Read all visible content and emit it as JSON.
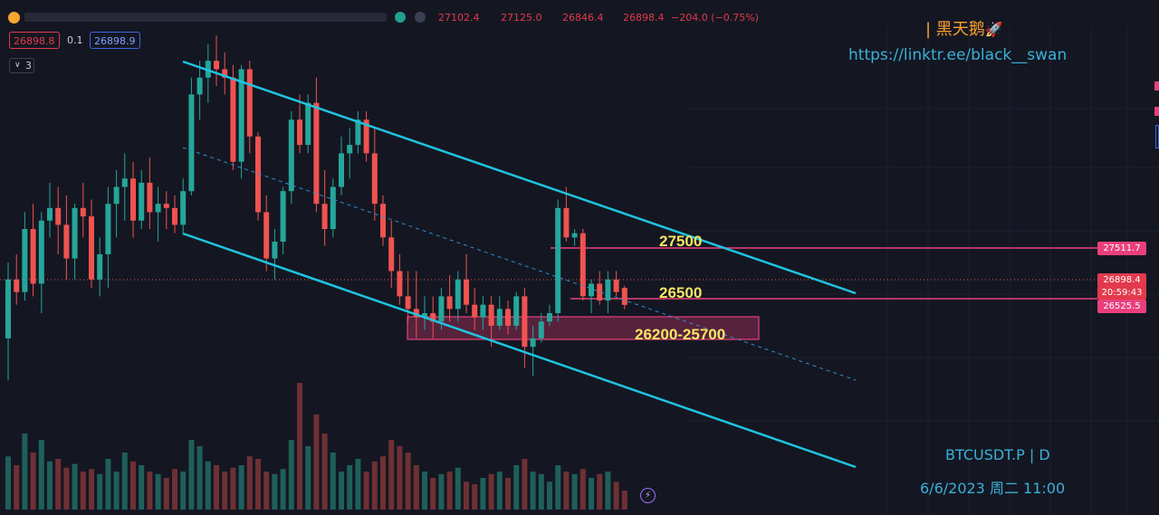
{
  "header": {
    "symbol_icon": "coin-icon",
    "ohlc": {
      "open": "27102.4",
      "high": "27125.0",
      "low": "26846.4",
      "close": "26898.4",
      "change": "−204.0 (−0.75%)"
    },
    "sell_price": "26898.8",
    "spread": "0.1",
    "buy_price": "26898.9",
    "indicator_count": "3"
  },
  "brand": {
    "name": "| 黑天鹅",
    "rocket": "🚀",
    "url": "https://linktr.ee/black__swan"
  },
  "footer": {
    "symbol": "BTCUSDT.P | D",
    "datetime": "6/6/2023 周二 11:00"
  },
  "right_axis": {
    "resistance": "27511.7",
    "last": "26898.4",
    "countdown": "20:59:43",
    "support": "26525.5"
  },
  "annotations": {
    "r": "27500",
    "s": "26500",
    "zone": "26200-25700"
  },
  "colors": {
    "up": "#26a69a",
    "down": "#ef5350",
    "channel": "#1ec5e0",
    "level": "#e9407c",
    "background": "#141722"
  },
  "chart_data": {
    "type": "candlestick",
    "symbol": "BTCUSDT.P",
    "interval": "D",
    "ylim": [
      25000,
      30000
    ],
    "candles": [
      [
        26500,
        27400,
        26000,
        27200
      ],
      [
        27200,
        27500,
        26900,
        27050
      ],
      [
        27050,
        28000,
        26950,
        27800
      ],
      [
        27800,
        28100,
        27000,
        27150
      ],
      [
        27150,
        28000,
        26800,
        27900
      ],
      [
        27900,
        28350,
        27700,
        28050
      ],
      [
        28050,
        28300,
        27500,
        27850
      ],
      [
        27850,
        28200,
        27200,
        27450
      ],
      [
        27450,
        28100,
        27200,
        28050
      ],
      [
        28050,
        28350,
        27700,
        27950
      ],
      [
        27950,
        28150,
        27100,
        27200
      ],
      [
        27200,
        27700,
        27000,
        27500
      ],
      [
        27500,
        28300,
        27100,
        28100
      ],
      [
        28100,
        28500,
        27700,
        28300
      ],
      [
        28300,
        28700,
        27900,
        28400
      ],
      [
        28400,
        28600,
        27700,
        27900
      ],
      [
        27900,
        28500,
        27800,
        28350
      ],
      [
        28350,
        28650,
        27800,
        28000
      ],
      [
        28000,
        28300,
        27650,
        28100
      ],
      [
        28100,
        28250,
        27800,
        28050
      ],
      [
        28050,
        28200,
        27750,
        27850
      ],
      [
        27850,
        28400,
        27750,
        28250
      ],
      [
        28250,
        29600,
        28200,
        29400
      ],
      [
        29400,
        29800,
        29100,
        29600
      ],
      [
        29600,
        30000,
        29300,
        29800
      ],
      [
        29800,
        30100,
        29500,
        29700
      ],
      [
        29700,
        29900,
        29400,
        29600
      ],
      [
        29600,
        29750,
        28500,
        28600
      ],
      [
        28600,
        29750,
        28400,
        29700
      ],
      [
        29700,
        29800,
        28700,
        28900
      ],
      [
        28900,
        28950,
        27900,
        28000
      ],
      [
        28000,
        28200,
        27300,
        27450
      ],
      [
        27450,
        27800,
        27200,
        27650
      ],
      [
        27650,
        28300,
        27500,
        28250
      ],
      [
        28250,
        29200,
        28100,
        29100
      ],
      [
        29100,
        29400,
        28700,
        28800
      ],
      [
        28800,
        29400,
        28700,
        29300
      ],
      [
        29300,
        29600,
        28000,
        28100
      ],
      [
        28100,
        28500,
        27600,
        27800
      ],
      [
        27800,
        28400,
        27700,
        28300
      ],
      [
        28300,
        28900,
        28200,
        28700
      ],
      [
        28700,
        29000,
        28400,
        28800
      ],
      [
        28800,
        29200,
        28700,
        29100
      ],
      [
        29100,
        29200,
        28600,
        28700
      ],
      [
        28700,
        29000,
        27900,
        28100
      ],
      [
        28100,
        28200,
        27600,
        27700
      ],
      [
        27700,
        27900,
        27100,
        27300
      ],
      [
        27300,
        27500,
        26900,
        27000
      ],
      [
        27000,
        27300,
        26700,
        26850
      ],
      [
        26850,
        27300,
        26500,
        26750
      ],
      [
        26750,
        27000,
        26600,
        26800
      ],
      [
        26800,
        27000,
        26500,
        26700
      ],
      [
        26700,
        27100,
        26600,
        27000
      ],
      [
        27000,
        27250,
        26700,
        26850
      ],
      [
        26850,
        27300,
        26700,
        27200
      ],
      [
        27200,
        27500,
        26800,
        26900
      ],
      [
        26900,
        27100,
        26600,
        26750
      ],
      [
        26750,
        27000,
        26600,
        26900
      ],
      [
        26900,
        27000,
        26400,
        26650
      ],
      [
        26650,
        27000,
        26600,
        26850
      ],
      [
        26850,
        26950,
        26550,
        26650
      ],
      [
        26650,
        27050,
        26600,
        27000
      ],
      [
        27000,
        27100,
        26150,
        26400
      ],
      [
        26400,
        26650,
        26050,
        26500
      ],
      [
        26500,
        26800,
        26450,
        26700
      ],
      [
        26700,
        26900,
        26650,
        26800
      ],
      [
        26800,
        28150,
        26700,
        28050
      ],
      [
        28050,
        28300,
        27650,
        27700
      ],
      [
        27700,
        27800,
        27600,
        27750
      ],
      [
        27750,
        27800,
        26950,
        27000
      ],
      [
        27000,
        27200,
        26800,
        27150
      ],
      [
        27150,
        27300,
        26900,
        26950
      ],
      [
        26950,
        27300,
        26800,
        27200
      ],
      [
        27200,
        27300,
        27000,
        27050
      ],
      [
        27100,
        27125,
        26846,
        26898
      ]
    ],
    "volume": [
      0.42,
      0.35,
      0.6,
      0.45,
      0.55,
      0.38,
      0.4,
      0.33,
      0.36,
      0.3,
      0.32,
      0.28,
      0.4,
      0.3,
      0.45,
      0.38,
      0.35,
      0.3,
      0.28,
      0.25,
      0.32,
      0.3,
      0.55,
      0.5,
      0.38,
      0.35,
      0.3,
      0.33,
      0.35,
      0.42,
      0.4,
      0.3,
      0.28,
      0.32,
      0.55,
      1.0,
      0.5,
      0.75,
      0.6,
      0.45,
      0.3,
      0.35,
      0.4,
      0.3,
      0.38,
      0.42,
      0.55,
      0.5,
      0.45,
      0.35,
      0.3,
      0.25,
      0.28,
      0.3,
      0.33,
      0.22,
      0.2,
      0.25,
      0.28,
      0.3,
      0.25,
      0.35,
      0.4,
      0.3,
      0.28,
      0.22,
      0.35,
      0.3,
      0.28,
      0.32,
      0.25,
      0.28,
      0.3,
      0.22,
      0.15
    ],
    "levels": [
      {
        "label": "27500",
        "value": 27511.7
      },
      {
        "label": "26500",
        "value": 26525.5
      }
    ],
    "zone": {
      "label": "26200-25700",
      "from": 25700,
      "to": 26200
    },
    "channel": {
      "upper": [
        [
          22,
          30200
        ],
        [
          75,
          26600
        ]
      ],
      "lower": [
        [
          22,
          27900
        ],
        [
          75,
          24400
        ]
      ],
      "mid": [
        [
          22,
          29000
        ],
        [
          75,
          25500
        ]
      ]
    }
  }
}
